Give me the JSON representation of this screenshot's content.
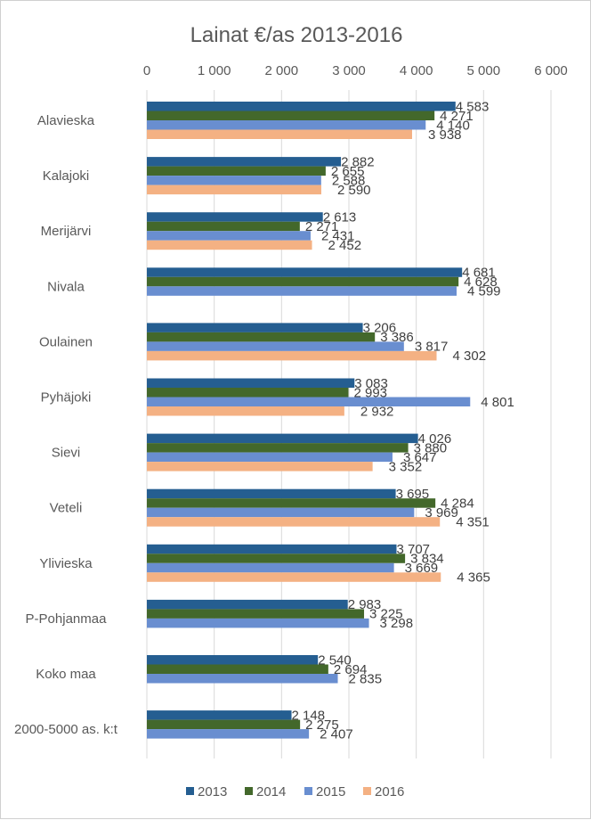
{
  "chart_data": {
    "type": "bar",
    "orientation": "horizontal",
    "title": "Lainat €/as 2013-2016",
    "xlim": [
      0,
      6000
    ],
    "x_ticks": [
      {
        "value": 0,
        "label": "0"
      },
      {
        "value": 1000,
        "label": "1 000"
      },
      {
        "value": 2000,
        "label": "2 000"
      },
      {
        "value": 3000,
        "label": "3 000"
      },
      {
        "value": 4000,
        "label": "4 000"
      },
      {
        "value": 5000,
        "label": "5 000"
      },
      {
        "value": 6000,
        "label": "6 000"
      }
    ],
    "grid": true,
    "axis_position": "top",
    "legend_position": "bottom",
    "categories": [
      "Alavieska",
      "Kalajoki",
      "Merijärvi",
      "Nivala",
      "Oulainen",
      "Pyhäjoki",
      "Sievi",
      "Veteli",
      "Ylivieska",
      "P-Pohjanmaa",
      "Koko maa",
      "2000-5000 as. k:t"
    ],
    "series": [
      {
        "name": "2013",
        "color": "#255e91",
        "values": [
          4583,
          2882,
          2613,
          4681,
          3206,
          3083,
          4026,
          3695,
          3707,
          2983,
          2540,
          2148
        ],
        "labels": [
          "4 583",
          "2 882",
          "2 613",
          "4 681",
          "3 206",
          "3 083",
          "4 026",
          "3 695",
          "3 707",
          "2 983",
          "2 540",
          "2 148"
        ]
      },
      {
        "name": "2014",
        "color": "#43682b",
        "values": [
          4271,
          2655,
          2271,
          4628,
          3386,
          2993,
          3880,
          4284,
          3834,
          3225,
          2694,
          2275
        ],
        "labels": [
          "4 271",
          "2 655",
          "2 271",
          "4 628",
          "3 386",
          "2 993",
          "3 880",
          "4 284",
          "3 834",
          "3 225",
          "2 694",
          "2 275"
        ]
      },
      {
        "name": "2015",
        "color": "#698ed0",
        "values": [
          4140,
          2588,
          2431,
          4599,
          3817,
          4801,
          3647,
          3969,
          3669,
          3298,
          2835,
          2407
        ],
        "labels": [
          "4 140",
          "2 588",
          "2 431",
          "4 599",
          "3 817",
          "4 801",
          "3 647",
          "3 969",
          "3 669",
          "3 298",
          "2 835",
          "2 407"
        ]
      },
      {
        "name": "2016",
        "color": "#f4b183",
        "values": [
          3938,
          2590,
          2452,
          null,
          4302,
          2932,
          3352,
          4351,
          4365,
          null,
          null,
          null
        ],
        "labels": [
          "3 938",
          "2 590",
          "2 452",
          null,
          "4 302",
          "2 932",
          "3 352",
          "4 351",
          "4 365",
          null,
          null,
          null
        ]
      }
    ]
  }
}
